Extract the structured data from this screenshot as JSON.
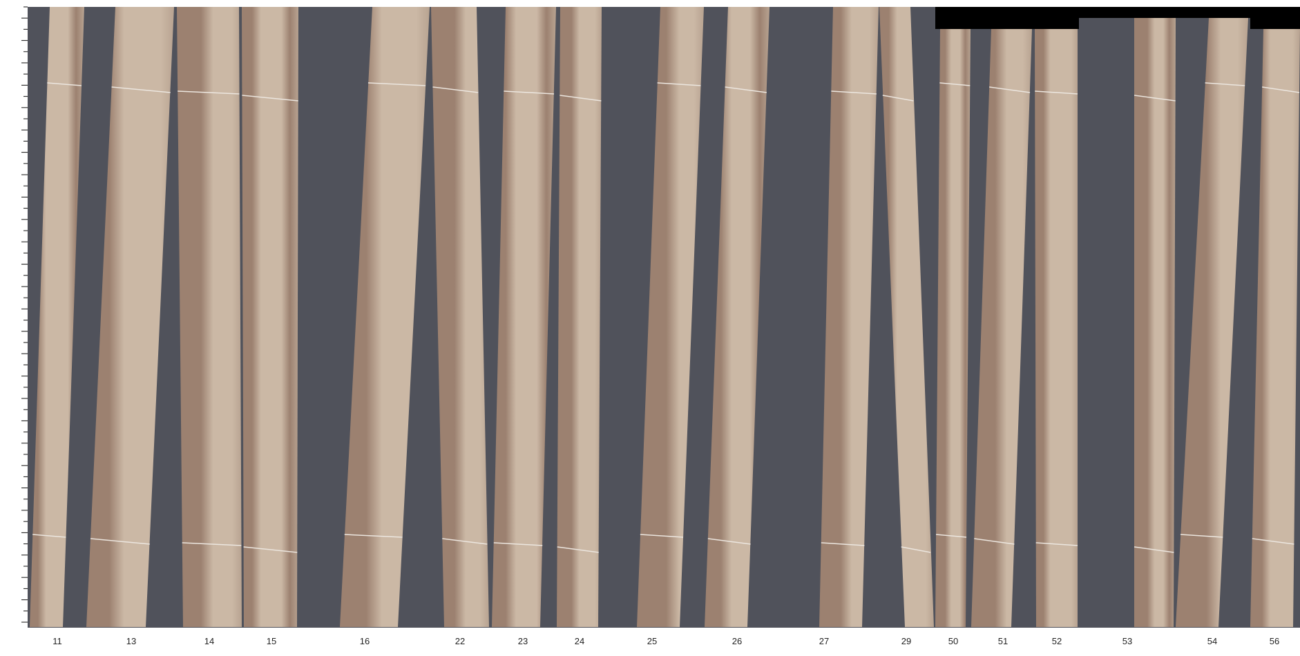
{
  "viewer": {
    "background_color": "#50525b",
    "wood_light_color": "#cbb8a5",
    "wood_dark_color": "#9c8170",
    "strip_labels": [
      "11",
      "13",
      "14",
      "15",
      "16",
      "22",
      "23",
      "24",
      "25",
      "26",
      "27",
      "29",
      "50",
      "51",
      "52",
      "53",
      "54",
      "56"
    ]
  }
}
